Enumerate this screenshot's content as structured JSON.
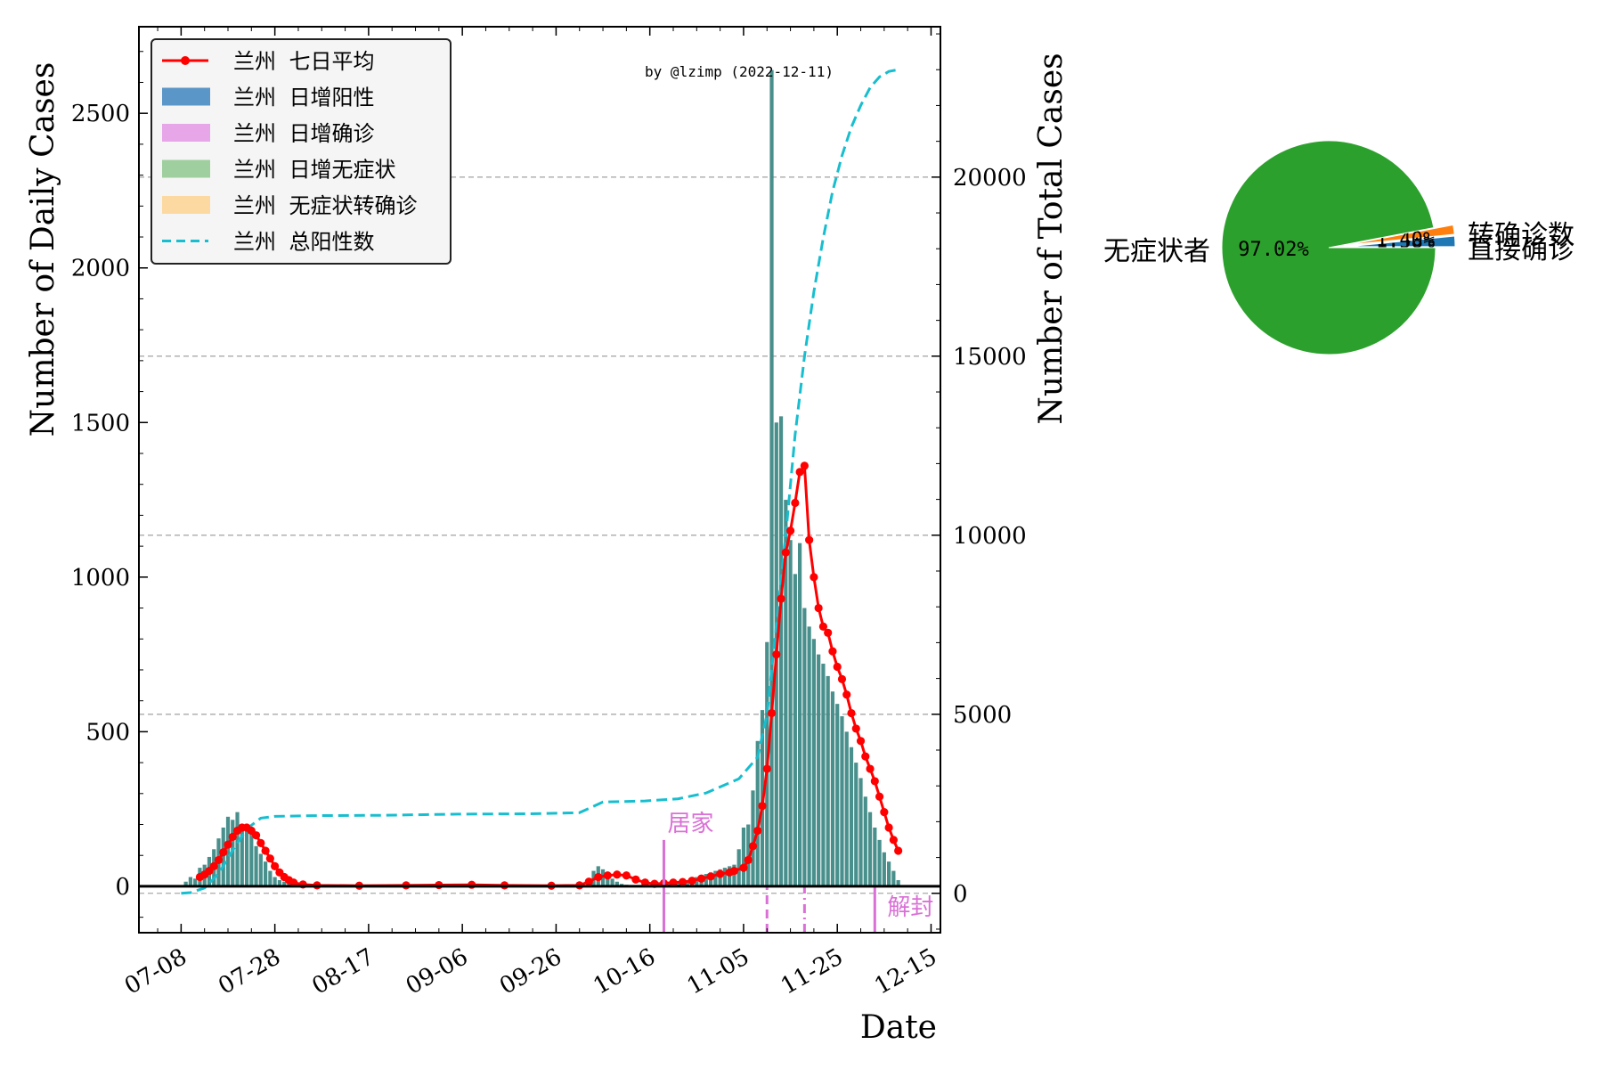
{
  "chart_data": [
    {
      "type": "bar+line",
      "xlabel": "Date",
      "ylabel_left": "Number of Daily Cases",
      "ylabel_right": "Number of Total Cases",
      "watermark": "by @lzimp (2022-12-11)",
      "x_tick_labels": [
        "07-08",
        "07-28",
        "08-17",
        "09-06",
        "09-26",
        "10-16",
        "11-05",
        "11-25",
        "12-15"
      ],
      "y_left_ticks": [
        0,
        500,
        1000,
        1500,
        2000,
        2500
      ],
      "y_right_ticks": [
        0,
        5000,
        10000,
        15000,
        20000
      ],
      "y_left_lim": [
        -150,
        2780
      ],
      "y_right_lim": [
        -1100,
        24200
      ],
      "x_start_date": "2022-06-29",
      "x_end_date": "2022-12-17",
      "colors": {
        "avg": "#ff0000",
        "pos": "#1f77b4",
        "confirmed": "#da70d6",
        "asym": "#2ca02c",
        "converted": "#f5a623",
        "total": "#17becf",
        "event": "#da70d6"
      },
      "legend": {
        "position": "top-left",
        "items": [
          {
            "label": "兰州 七日平均",
            "kind": "line-marker",
            "color": "#ff0000"
          },
          {
            "label": "兰州 日增阳性",
            "kind": "patch",
            "color": "#5a96c8"
          },
          {
            "label": "兰州 日增确诊",
            "kind": "patch",
            "color": "#e6a6e8"
          },
          {
            "label": "兰州 日增无症状",
            "kind": "patch",
            "color": "#a0cf9f"
          },
          {
            "label": "兰州 无症状转确诊",
            "kind": "patch",
            "color": "#fbd9a0"
          },
          {
            "label": "兰州 总阳性数",
            "kind": "dashed",
            "color": "#17becf"
          }
        ]
      },
      "events": [
        {
          "date": "2022-10-19",
          "label": "居家",
          "top": 150,
          "style": "solid"
        },
        {
          "date": "2022-11-10",
          "label": "",
          "top": 0,
          "style": "dashed"
        },
        {
          "date": "2022-11-18",
          "label": "",
          "top": 0,
          "style": "dashdot"
        },
        {
          "date": "2022-12-03",
          "label": "解封",
          "top": 0,
          "style": "solid"
        }
      ],
      "daily_positive": [
        [
          "2022-07-09",
          15
        ],
        [
          "2022-07-10",
          30
        ],
        [
          "2022-07-11",
          25
        ],
        [
          "2022-07-12",
          60
        ],
        [
          "2022-07-13",
          70
        ],
        [
          "2022-07-14",
          95
        ],
        [
          "2022-07-15",
          120
        ],
        [
          "2022-07-16",
          155
        ],
        [
          "2022-07-17",
          190
        ],
        [
          "2022-07-18",
          225
        ],
        [
          "2022-07-19",
          215
        ],
        [
          "2022-07-20",
          240
        ],
        [
          "2022-07-21",
          200
        ],
        [
          "2022-07-22",
          200
        ],
        [
          "2022-07-23",
          185
        ],
        [
          "2022-07-24",
          130
        ],
        [
          "2022-07-25",
          105
        ],
        [
          "2022-07-26",
          80
        ],
        [
          "2022-07-27",
          50
        ],
        [
          "2022-07-28",
          30
        ],
        [
          "2022-07-29",
          20
        ],
        [
          "2022-07-30",
          15
        ],
        [
          "2022-07-31",
          10
        ],
        [
          "2022-08-01",
          8
        ],
        [
          "2022-08-02",
          5
        ],
        [
          "2022-08-03",
          3
        ],
        [
          "2022-10-04",
          50
        ],
        [
          "2022-10-05",
          65
        ],
        [
          "2022-10-06",
          55
        ],
        [
          "2022-10-07",
          40
        ],
        [
          "2022-10-08",
          25
        ],
        [
          "2022-10-09",
          15
        ],
        [
          "2022-10-10",
          8
        ],
        [
          "2022-10-11",
          5
        ],
        [
          "2022-10-20",
          8
        ],
        [
          "2022-10-21",
          12
        ],
        [
          "2022-10-22",
          15
        ],
        [
          "2022-10-23",
          18
        ],
        [
          "2022-10-24",
          20
        ],
        [
          "2022-10-25",
          25
        ],
        [
          "2022-10-26",
          30
        ],
        [
          "2022-10-27",
          35
        ],
        [
          "2022-10-28",
          40
        ],
        [
          "2022-10-29",
          45
        ],
        [
          "2022-10-30",
          50
        ],
        [
          "2022-10-31",
          55
        ],
        [
          "2022-11-01",
          60
        ],
        [
          "2022-11-02",
          65
        ],
        [
          "2022-11-03",
          70
        ],
        [
          "2022-11-04",
          120
        ],
        [
          "2022-11-05",
          190
        ],
        [
          "2022-11-06",
          200
        ],
        [
          "2022-11-07",
          310
        ],
        [
          "2022-11-08",
          470
        ],
        [
          "2022-11-09",
          570
        ],
        [
          "2022-11-10",
          790
        ],
        [
          "2022-11-11",
          2640
        ],
        [
          "2022-11-12",
          1500
        ],
        [
          "2022-11-13",
          1520
        ],
        [
          "2022-11-14",
          1250
        ],
        [
          "2022-11-15",
          1120
        ],
        [
          "2022-11-16",
          1010
        ],
        [
          "2022-11-17",
          1110
        ],
        [
          "2022-11-18",
          900
        ],
        [
          "2022-11-19",
          840
        ],
        [
          "2022-11-20",
          800
        ],
        [
          "2022-11-21",
          750
        ],
        [
          "2022-11-22",
          720
        ],
        [
          "2022-11-23",
          680
        ],
        [
          "2022-11-24",
          630
        ],
        [
          "2022-11-25",
          590
        ],
        [
          "2022-11-26",
          550
        ],
        [
          "2022-11-27",
          500
        ],
        [
          "2022-11-28",
          450
        ],
        [
          "2022-11-29",
          400
        ],
        [
          "2022-11-30",
          350
        ],
        [
          "2022-12-01",
          290
        ],
        [
          "2022-12-02",
          240
        ],
        [
          "2022-12-03",
          190
        ],
        [
          "2022-12-04",
          150
        ],
        [
          "2022-12-05",
          110
        ],
        [
          "2022-12-06",
          80
        ],
        [
          "2022-12-07",
          50
        ],
        [
          "2022-12-08",
          20
        ]
      ],
      "seven_day_average": [
        [
          "2022-07-12",
          30
        ],
        [
          "2022-07-13",
          38
        ],
        [
          "2022-07-14",
          50
        ],
        [
          "2022-07-15",
          65
        ],
        [
          "2022-07-16",
          85
        ],
        [
          "2022-07-17",
          110
        ],
        [
          "2022-07-18",
          135
        ],
        [
          "2022-07-19",
          160
        ],
        [
          "2022-07-20",
          180
        ],
        [
          "2022-07-21",
          190
        ],
        [
          "2022-07-22",
          190
        ],
        [
          "2022-07-23",
          180
        ],
        [
          "2022-07-24",
          165
        ],
        [
          "2022-07-25",
          140
        ],
        [
          "2022-07-26",
          115
        ],
        [
          "2022-07-27",
          90
        ],
        [
          "2022-07-28",
          65
        ],
        [
          "2022-07-29",
          45
        ],
        [
          "2022-07-30",
          30
        ],
        [
          "2022-07-31",
          20
        ],
        [
          "2022-08-01",
          12
        ],
        [
          "2022-08-03",
          6
        ],
        [
          "2022-08-06",
          3
        ],
        [
          "2022-08-15",
          2
        ],
        [
          "2022-08-25",
          3
        ],
        [
          "2022-09-01",
          4
        ],
        [
          "2022-09-08",
          5
        ],
        [
          "2022-09-15",
          3
        ],
        [
          "2022-09-25",
          2
        ],
        [
          "2022-10-01",
          3
        ],
        [
          "2022-10-03",
          15
        ],
        [
          "2022-10-05",
          30
        ],
        [
          "2022-10-07",
          35
        ],
        [
          "2022-10-09",
          38
        ],
        [
          "2022-10-11",
          35
        ],
        [
          "2022-10-13",
          22
        ],
        [
          "2022-10-15",
          12
        ],
        [
          "2022-10-17",
          8
        ],
        [
          "2022-10-19",
          10
        ],
        [
          "2022-10-21",
          12
        ],
        [
          "2022-10-23",
          14
        ],
        [
          "2022-10-25",
          18
        ],
        [
          "2022-10-27",
          25
        ],
        [
          "2022-10-29",
          32
        ],
        [
          "2022-10-31",
          40
        ],
        [
          "2022-11-02",
          45
        ],
        [
          "2022-11-03",
          50
        ],
        [
          "2022-11-05",
          60
        ],
        [
          "2022-11-06",
          85
        ],
        [
          "2022-11-07",
          130
        ],
        [
          "2022-11-08",
          180
        ],
        [
          "2022-11-09",
          260
        ],
        [
          "2022-11-10",
          380
        ],
        [
          "2022-11-11",
          560
        ],
        [
          "2022-11-12",
          750
        ],
        [
          "2022-11-13",
          930
        ],
        [
          "2022-11-14",
          1080
        ],
        [
          "2022-11-15",
          1150
        ],
        [
          "2022-11-16",
          1240
        ],
        [
          "2022-11-17",
          1340
        ],
        [
          "2022-11-18",
          1360
        ],
        [
          "2022-11-19",
          1120
        ],
        [
          "2022-11-20",
          1000
        ],
        [
          "2022-11-21",
          900
        ],
        [
          "2022-11-22",
          840
        ],
        [
          "2022-11-23",
          820
        ],
        [
          "2022-11-24",
          760
        ],
        [
          "2022-11-25",
          710
        ],
        [
          "2022-11-26",
          670
        ],
        [
          "2022-11-27",
          620
        ],
        [
          "2022-11-28",
          560
        ],
        [
          "2022-11-29",
          510
        ],
        [
          "2022-11-30",
          470
        ],
        [
          "2022-12-01",
          420
        ],
        [
          "2022-12-02",
          380
        ],
        [
          "2022-12-03",
          340
        ],
        [
          "2022-12-04",
          290
        ],
        [
          "2022-12-05",
          240
        ],
        [
          "2022-12-06",
          190
        ],
        [
          "2022-12-07",
          150
        ],
        [
          "2022-12-08",
          115
        ]
      ],
      "total_positive": [
        [
          "2022-07-08",
          0
        ],
        [
          "2022-07-10",
          20
        ],
        [
          "2022-07-13",
          150
        ],
        [
          "2022-07-16",
          550
        ],
        [
          "2022-07-19",
          1200
        ],
        [
          "2022-07-22",
          1800
        ],
        [
          "2022-07-25",
          2100
        ],
        [
          "2022-07-28",
          2150
        ],
        [
          "2022-08-05",
          2170
        ],
        [
          "2022-08-20",
          2180
        ],
        [
          "2022-09-05",
          2210
        ],
        [
          "2022-09-20",
          2220
        ],
        [
          "2022-10-01",
          2250
        ],
        [
          "2022-10-06",
          2550
        ],
        [
          "2022-10-15",
          2580
        ],
        [
          "2022-10-22",
          2640
        ],
        [
          "2022-10-28",
          2800
        ],
        [
          "2022-11-04",
          3200
        ],
        [
          "2022-11-08",
          3800
        ],
        [
          "2022-11-10",
          5000
        ],
        [
          "2022-11-12",
          7500
        ],
        [
          "2022-11-14",
          10000
        ],
        [
          "2022-11-16",
          12800
        ],
        [
          "2022-11-18",
          15000
        ],
        [
          "2022-11-20",
          16800
        ],
        [
          "2022-11-22",
          18300
        ],
        [
          "2022-11-24",
          19600
        ],
        [
          "2022-11-26",
          20600
        ],
        [
          "2022-11-28",
          21400
        ],
        [
          "2022-11-30",
          22000
        ],
        [
          "2022-12-02",
          22500
        ],
        [
          "2022-12-04",
          22800
        ],
        [
          "2022-12-06",
          22950
        ],
        [
          "2022-12-08",
          23000
        ]
      ]
    },
    {
      "type": "pie",
      "slices": [
        {
          "label": "无症状者",
          "value": 97.02,
          "pct_text": "97.02%",
          "color": "#2ca02c"
        },
        {
          "label": "直接确诊",
          "value": 1.58,
          "pct_text": "1.58%",
          "color": "#1f77b4"
        },
        {
          "label": "转确诊数",
          "value": 1.4,
          "pct_text": "1.40%",
          "color": "#ff7f0e"
        }
      ]
    }
  ]
}
